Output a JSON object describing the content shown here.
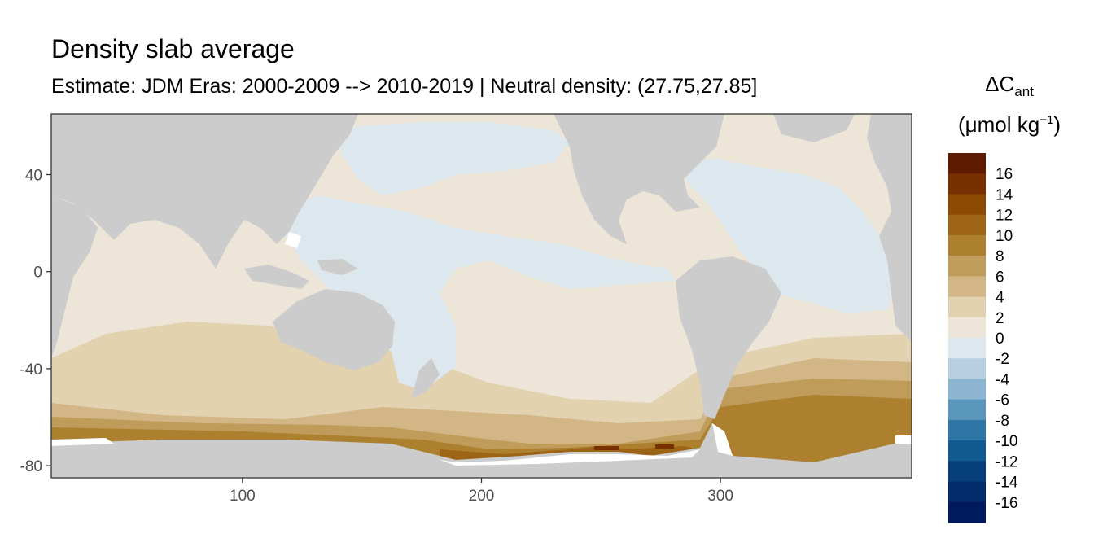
{
  "chart_data": {
    "type": "heatmap",
    "title": "Density slab average",
    "subtitle": "Estimate: JDM Eras: 2000-2009 --> 2010-2019 | Neutral density: (27.75,27.85]",
    "xlabel": "",
    "ylabel": "",
    "xlim": [
      20,
      380
    ],
    "ylim": [
      -85,
      65
    ],
    "x_ticks": [
      100,
      200,
      300
    ],
    "y_ticks": [
      40,
      0,
      -40,
      -80
    ],
    "grid": false,
    "legend_position": "right",
    "legend_title": "ΔC",
    "legend_title_subscript": "ant",
    "legend_unit_prefix": "(μmol kg",
    "legend_unit_superscript": "−1",
    "legend_unit_suffix": ")",
    "legend_labels": [
      "16",
      "14",
      "12",
      "10",
      "8",
      "6",
      "4",
      "2",
      "0",
      "-2",
      "-4",
      "-6",
      "-8",
      "-10",
      "-12",
      "-14",
      "-16"
    ],
    "legend_colors": [
      "#5e1b00",
      "#783000",
      "#8c4a02",
      "#9c6414",
      "#ad8030",
      "#bf9c5a",
      "#d2b686",
      "#e3d2b0",
      "#ede5d8",
      "#dde7ee",
      "#b7cfe0",
      "#8cb5d1",
      "#5b96bd",
      "#2e76a6",
      "#0f5a91",
      "#063f7c",
      "#022c6c",
      "#001a5e"
    ],
    "land_color": "#cccccc",
    "annotations": [],
    "field_description_bands": [
      {
        "lat_range": [
          65,
          -30
        ],
        "lon_range": [
          20,
          380
        ],
        "value_range": [
          0,
          2
        ]
      },
      {
        "lat_range": [
          -30,
          -55
        ],
        "lon_range": [
          20,
          380
        ],
        "value_range": [
          2,
          4
        ]
      },
      {
        "lat_range": [
          -55,
          -75
        ],
        "lon_range": [
          20,
          380
        ],
        "value_range": [
          4,
          12
        ]
      }
    ]
  }
}
